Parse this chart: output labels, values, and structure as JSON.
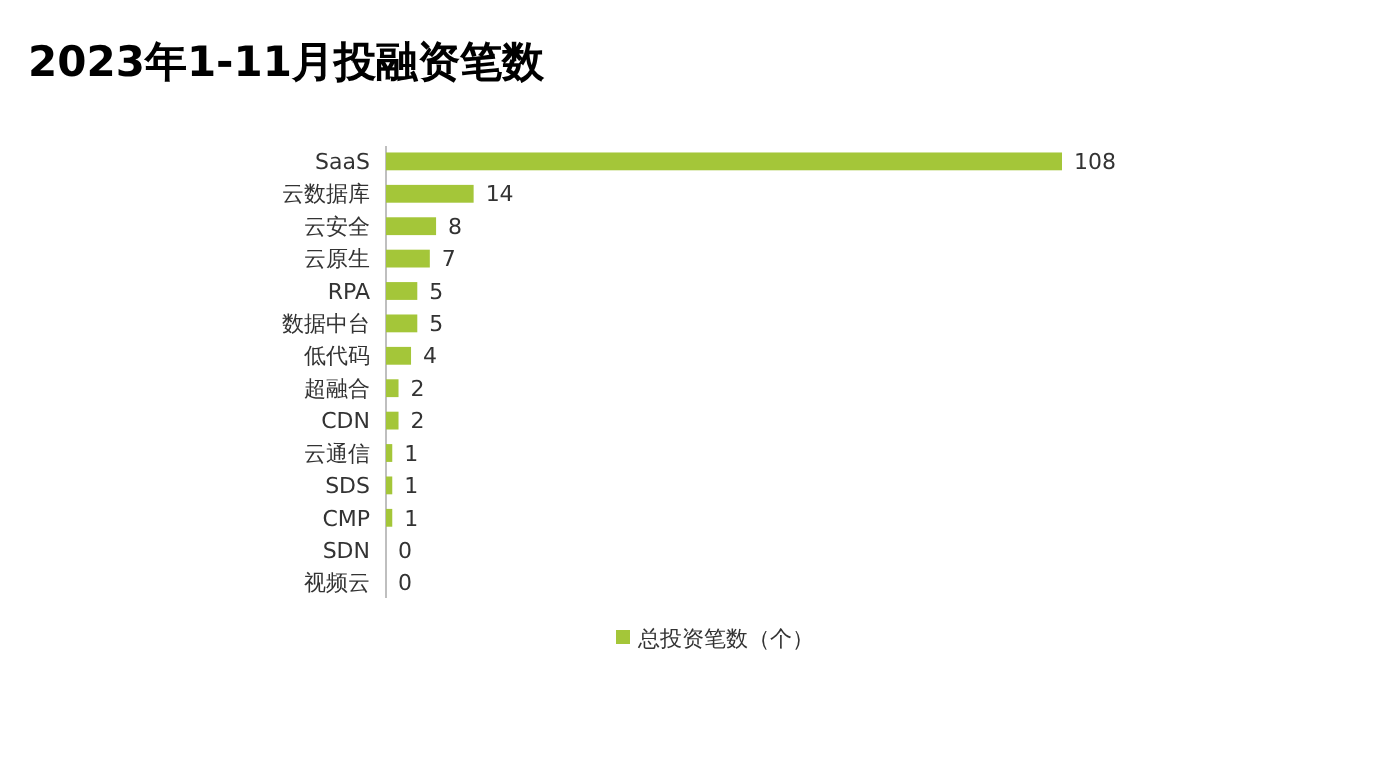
{
  "chart_data": {
    "type": "bar",
    "orientation": "horizontal",
    "title": "2023年1-11月投融资笔数",
    "categories": [
      "SaaS",
      "云数据库",
      "云安全",
      "云原生",
      "RPA",
      "数据中台",
      "低代码",
      "超融合",
      "CDN",
      "云通信",
      "SDS",
      "CMP",
      "SDN",
      "视频云"
    ],
    "series": [
      {
        "name": "总投资笔数（个）",
        "color": "#a4c639",
        "values": [
          108,
          14,
          8,
          7,
          5,
          5,
          4,
          2,
          2,
          1,
          1,
          1,
          0,
          0
        ]
      }
    ],
    "data_labels": true,
    "legend": "bottom"
  }
}
